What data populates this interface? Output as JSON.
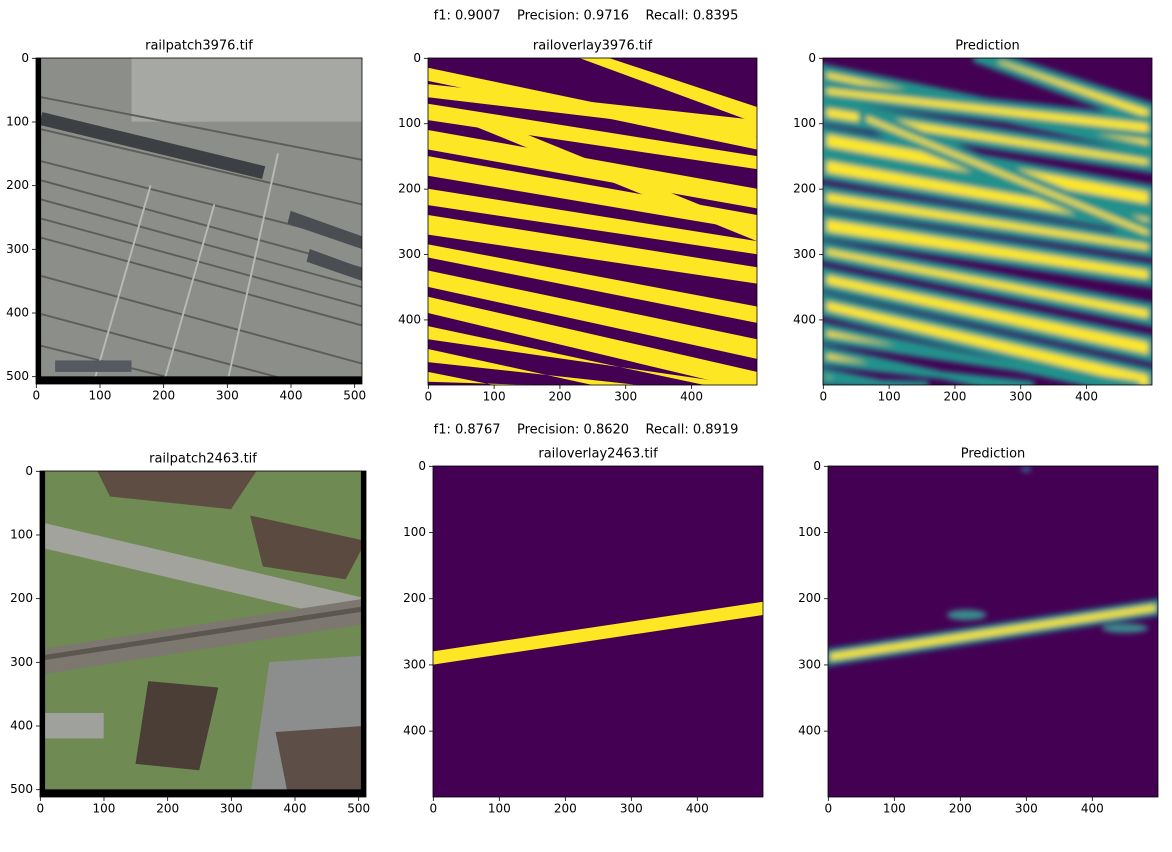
{
  "figure": {
    "rows": [
      {
        "suptitle": "f1: 0.9007    Precision: 0.9716    Recall: 0.8395",
        "panels": [
          {
            "title": "railpatch3976.tif",
            "xlim": [
              -0.5,
              511.5
            ],
            "ylim": [
              511.5,
              -0.5
            ],
            "xticks": [
              0,
              100,
              200,
              300,
              400,
              500
            ],
            "yticks": [
              0,
              100,
              200,
              300,
              400,
              500
            ]
          },
          {
            "title": "railoverlay3976.tif",
            "xlim": [
              -0.5,
              499.5
            ],
            "ylim": [
              499.5,
              -0.5
            ],
            "xticks": [
              0,
              100,
              200,
              300,
              400
            ],
            "yticks": [
              0,
              100,
              200,
              300,
              400
            ]
          },
          {
            "title": "Prediction",
            "xlim": [
              -0.5,
              499.5
            ],
            "ylim": [
              499.5,
              -0.5
            ],
            "xticks": [
              0,
              100,
              200,
              300,
              400
            ],
            "yticks": [
              0,
              100,
              200,
              300,
              400
            ]
          }
        ]
      },
      {
        "suptitle": "f1: 0.8767    Precision: 0.8620    Recall: 0.8919",
        "panels": [
          {
            "title": "railpatch2463.tif",
            "xlim": [
              -0.5,
              511.5
            ],
            "ylim": [
              511.5,
              -0.5
            ],
            "xticks": [
              0,
              100,
              200,
              300,
              400,
              500
            ],
            "yticks": [
              0,
              100,
              200,
              300,
              400,
              500
            ]
          },
          {
            "title": "railoverlay2463.tif",
            "xlim": [
              -0.5,
              499.5
            ],
            "ylim": [
              499.5,
              -0.5
            ],
            "xticks": [
              0,
              100,
              200,
              300,
              400
            ],
            "yticks": [
              0,
              100,
              200,
              300,
              400
            ]
          },
          {
            "title": "Prediction",
            "xlim": [
              -0.5,
              499.5
            ],
            "ylim": [
              499.5,
              -0.5
            ],
            "xticks": [
              0,
              100,
              200,
              300,
              400
            ],
            "yticks": [
              0,
              100,
              200,
              300,
              400
            ]
          }
        ]
      }
    ]
  }
}
